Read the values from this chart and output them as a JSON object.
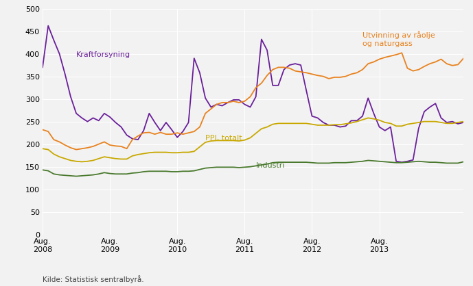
{
  "source": "Kilde: Statistisk sentralbyrå.",
  "ylim": [
    0,
    500
  ],
  "yticks": [
    0,
    50,
    100,
    150,
    200,
    250,
    300,
    350,
    400,
    450,
    500
  ],
  "background_color": "#f2f2f2",
  "grid_color": "#ffffff",
  "series": {
    "Kraftforsyning": {
      "color": "#6a1f9a",
      "label": "Kraftforsyning",
      "data": [
        370,
        462,
        430,
        400,
        355,
        305,
        268,
        258,
        250,
        258,
        252,
        268,
        260,
        248,
        238,
        220,
        212,
        210,
        230,
        268,
        248,
        230,
        248,
        232,
        215,
        228,
        248,
        390,
        358,
        302,
        282,
        288,
        285,
        292,
        298,
        298,
        288,
        282,
        305,
        432,
        408,
        330,
        330,
        365,
        375,
        378,
        375,
        318,
        262,
        258,
        248,
        242,
        242,
        238,
        240,
        252,
        252,
        262,
        302,
        268,
        238,
        230,
        238,
        162,
        160,
        162,
        165,
        235,
        272,
        282,
        290,
        258,
        248,
        250,
        245,
        248
      ]
    },
    "Utvinning av raolje og naturgass": {
      "color": "#e8821e",
      "label_line1": "Utvinning av råolje",
      "label_line2": "og naturgass",
      "data": [
        232,
        228,
        210,
        205,
        198,
        192,
        188,
        190,
        192,
        195,
        200,
        205,
        198,
        196,
        195,
        190,
        210,
        218,
        225,
        226,
        222,
        226,
        222,
        222,
        225,
        222,
        225,
        228,
        238,
        268,
        278,
        288,
        292,
        292,
        295,
        292,
        295,
        305,
        325,
        335,
        352,
        365,
        370,
        370,
        368,
        362,
        360,
        358,
        355,
        352,
        350,
        345,
        348,
        348,
        350,
        355,
        358,
        365,
        378,
        382,
        388,
        392,
        395,
        398,
        402,
        368,
        362,
        365,
        372,
        378,
        382,
        388,
        378,
        374,
        376,
        390
      ]
    },
    "PPI, totalt": {
      "color": "#c8a800",
      "label": "PPI, totalt",
      "data": [
        190,
        188,
        178,
        172,
        168,
        164,
        162,
        161,
        162,
        164,
        168,
        172,
        170,
        168,
        167,
        167,
        174,
        177,
        179,
        181,
        182,
        182,
        182,
        181,
        181,
        182,
        182,
        184,
        194,
        204,
        207,
        208,
        208,
        208,
        208,
        207,
        209,
        214,
        224,
        234,
        238,
        244,
        246,
        246,
        246,
        246,
        246,
        246,
        244,
        242,
        242,
        242,
        243,
        243,
        245,
        247,
        250,
        254,
        258,
        256,
        253,
        248,
        246,
        240,
        240,
        244,
        246,
        248,
        250,
        250,
        250,
        248,
        246,
        246,
        248,
        250
      ]
    },
    "Industri": {
      "color": "#4a7a2e",
      "label": "Industri",
      "data": [
        143,
        141,
        134,
        132,
        131,
        130,
        129,
        130,
        131,
        132,
        134,
        137,
        135,
        134,
        134,
        134,
        136,
        137,
        139,
        140,
        140,
        140,
        140,
        139,
        139,
        140,
        140,
        141,
        144,
        147,
        148,
        149,
        149,
        149,
        149,
        148,
        149,
        150,
        152,
        154,
        156,
        159,
        160,
        160,
        160,
        160,
        160,
        160,
        159,
        158,
        158,
        158,
        159,
        159,
        159,
        160,
        161,
        162,
        164,
        163,
        162,
        161,
        160,
        159,
        159,
        160,
        161,
        162,
        161,
        160,
        160,
        159,
        158,
        158,
        158,
        161
      ]
    }
  },
  "x_tick_pos": [
    0,
    12,
    24,
    36,
    48,
    60,
    72
  ],
  "x_tick_labels": [
    "Aug.\n2008",
    "Aug.\n2009",
    "Aug.\n2010",
    "Aug.\n2011",
    "Aug.\n2012",
    "Aug.\n2013",
    ""
  ]
}
